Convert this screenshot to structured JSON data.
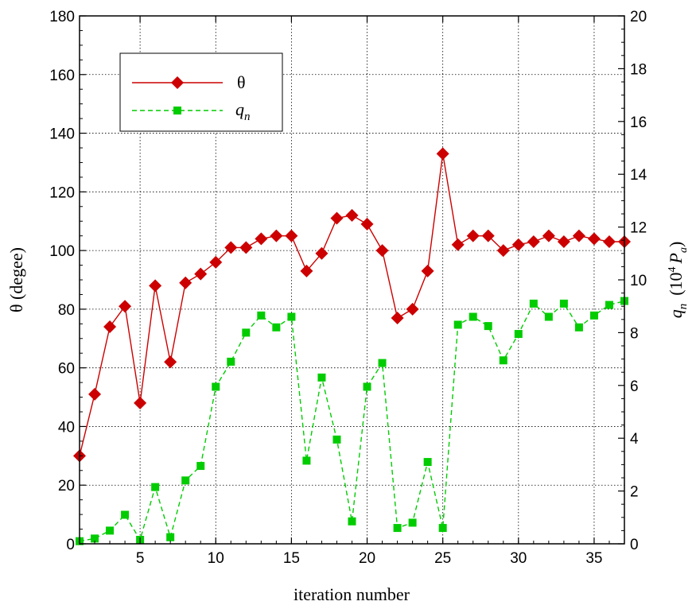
{
  "chart_data": {
    "type": "line",
    "xlabel": "iteration number",
    "ylabel_left": "θ  (degee)",
    "ylabel_right": "q_n (10^4 P_a)",
    "ylabel_right_parts": {
      "q": "q",
      "n": "n",
      "unit_open": "(10",
      "exp": "4",
      "P": "P",
      "a": "a",
      "unit_close": ")"
    },
    "xlim": [
      1,
      37
    ],
    "ylim_left": [
      0,
      180
    ],
    "ylim_right": [
      0,
      20
    ],
    "x_ticks": [
      5,
      10,
      15,
      20,
      25,
      30,
      35
    ],
    "y_left_ticks": [
      0,
      20,
      40,
      60,
      80,
      100,
      120,
      140,
      160,
      180
    ],
    "y_right_ticks": [
      0,
      2,
      4,
      6,
      8,
      10,
      12,
      14,
      16,
      18,
      20
    ],
    "grid": true,
    "legend_position": "top-left",
    "series": [
      {
        "name": "θ",
        "axis": "left",
        "color": "#cc0000",
        "marker": "diamond",
        "line_style": "solid",
        "x": [
          1,
          2,
          3,
          4,
          5,
          6,
          7,
          8,
          9,
          10,
          11,
          12,
          13,
          14,
          15,
          16,
          17,
          18,
          19,
          20,
          21,
          22,
          23,
          24,
          25,
          26,
          27,
          28,
          29,
          30,
          31,
          32,
          33,
          34,
          35,
          36,
          37
        ],
        "values": [
          30,
          51,
          74,
          81,
          48,
          88,
          62,
          89,
          92,
          96,
          101,
          101,
          104,
          105,
          105,
          93,
          99,
          111,
          112,
          109,
          100,
          77,
          80,
          93,
          133,
          102,
          105,
          105,
          100,
          102,
          103,
          105,
          103,
          105,
          104,
          103,
          103
        ]
      },
      {
        "name": "q_n",
        "name_parts": {
          "main": "q",
          "sub": "n"
        },
        "axis": "right",
        "color": "#00cc00",
        "marker": "square",
        "line_style": "dashed",
        "x": [
          1,
          2,
          3,
          4,
          5,
          6,
          7,
          8,
          9,
          10,
          11,
          12,
          13,
          14,
          15,
          16,
          17,
          18,
          19,
          20,
          21,
          22,
          23,
          24,
          25,
          26,
          27,
          28,
          29,
          30,
          31,
          32,
          33,
          34,
          35,
          36,
          37
        ],
        "values": [
          0.1,
          0.2,
          0.5,
          1.1,
          0.15,
          2.15,
          0.25,
          2.4,
          2.95,
          5.95,
          6.9,
          8.0,
          8.65,
          8.2,
          8.6,
          3.15,
          6.3,
          3.95,
          0.85,
          5.95,
          6.85,
          0.6,
          0.8,
          3.1,
          0.6,
          8.3,
          8.6,
          8.25,
          6.95,
          7.95,
          9.1,
          8.6,
          9.1,
          8.2,
          8.65,
          9.05,
          9.2
        ]
      }
    ]
  }
}
